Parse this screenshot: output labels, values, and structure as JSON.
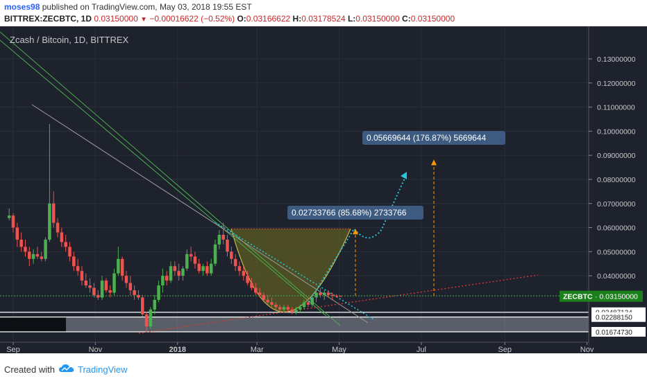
{
  "header": {
    "user": "moses98",
    "published": "published on TradingView.com, May 03, 2018 19:55 EST",
    "symbol": "BITTREX:ZECBTC, 1D",
    "price": "0.03150000",
    "change": "−0.00016622 (−0.52%)",
    "o_label": "O:",
    "o_value": "0.03166622",
    "h_label": "H:",
    "h_value": "0.03178524",
    "l_label": "L:",
    "l_value": "0.03150000",
    "c_label": "C:",
    "c_value": "0.03150000"
  },
  "footer": {
    "created": "Created with",
    "brand": "TradingView"
  },
  "colors": {
    "bg": "#1e222d",
    "grid": "#2a2e39",
    "up": "#4caf50",
    "down": "#ef5350",
    "green_line": "#4caf50",
    "cyan": "#26c6da",
    "red_dotted": "#e53935",
    "orange": "#ff9800",
    "cup_fill": "#6b6b1f",
    "label_bg": "#3d5a80"
  },
  "chart_data": {
    "type": "candlestick",
    "title": "Zcash / Bitcoin, 1D, BITTREX",
    "x_ticks": [
      "Sep",
      "Nov",
      "2018",
      "Mar",
      "May",
      "Jul",
      "Sep",
      "Nov"
    ],
    "y_ticks": [
      "0.13000000",
      "0.12000000",
      "0.11000000",
      "0.10000000",
      "0.09000000",
      "0.08000000",
      "0.07000000",
      "0.06000000",
      "0.05000000",
      "0.04000000"
    ],
    "ylim": [
      0.0135,
      0.137
    ],
    "yscale": "linear",
    "price_labels": [
      {
        "name": "ZECBTC",
        "value": "0.03150000",
        "y": 0.0315
      },
      {
        "value": "0.02487134",
        "y": 0.02487134
      },
      {
        "value": "0.02288150",
        "y": 0.0228815
      },
      {
        "value": "0.01674730",
        "y": 0.0167473
      }
    ],
    "annotations": [
      {
        "text": "0.02733766 (85.68%) 2733766"
      },
      {
        "text": "0.05669644 (176.87%) 5669644"
      }
    ],
    "candles": [
      [
        "2017-08-29",
        0.064,
        0.068,
        0.063,
        0.065
      ],
      [
        "2017-09-01",
        0.065,
        0.066,
        0.058,
        0.06
      ],
      [
        "2017-09-04",
        0.06,
        0.062,
        0.052,
        0.055
      ],
      [
        "2017-09-07",
        0.055,
        0.058,
        0.05,
        0.052
      ],
      [
        "2017-09-10",
        0.052,
        0.055,
        0.048,
        0.05
      ],
      [
        "2017-09-13",
        0.05,
        0.052,
        0.044,
        0.047
      ],
      [
        "2017-09-16",
        0.047,
        0.051,
        0.045,
        0.049
      ],
      [
        "2017-09-19",
        0.049,
        0.052,
        0.047,
        0.048
      ],
      [
        "2017-09-22",
        0.048,
        0.05,
        0.046,
        0.047
      ],
      [
        "2017-09-25",
        0.047,
        0.056,
        0.046,
        0.055
      ],
      [
        "2017-09-28",
        0.055,
        0.103,
        0.054,
        0.07
      ],
      [
        "2017-10-01",
        0.07,
        0.075,
        0.06,
        0.062
      ],
      [
        "2017-10-04",
        0.062,
        0.064,
        0.056,
        0.058
      ],
      [
        "2017-10-07",
        0.058,
        0.06,
        0.052,
        0.054
      ],
      [
        "2017-10-10",
        0.054,
        0.057,
        0.05,
        0.052
      ],
      [
        "2017-10-13",
        0.052,
        0.054,
        0.046,
        0.048
      ],
      [
        "2017-10-16",
        0.048,
        0.05,
        0.042,
        0.044
      ],
      [
        "2017-10-19",
        0.044,
        0.047,
        0.04,
        0.042
      ],
      [
        "2017-10-22",
        0.042,
        0.044,
        0.036,
        0.038
      ],
      [
        "2017-10-25",
        0.038,
        0.041,
        0.035,
        0.036
      ],
      [
        "2017-10-28",
        0.036,
        0.039,
        0.033,
        0.035
      ],
      [
        "2017-10-31",
        0.035,
        0.037,
        0.031,
        0.032
      ],
      [
        "2017-11-03",
        0.032,
        0.034,
        0.03,
        0.031
      ],
      [
        "2017-11-06",
        0.031,
        0.04,
        0.03,
        0.038
      ],
      [
        "2017-11-09",
        0.038,
        0.039,
        0.033,
        0.034
      ],
      [
        "2017-11-12",
        0.034,
        0.036,
        0.031,
        0.033
      ],
      [
        "2017-11-15",
        0.033,
        0.043,
        0.032,
        0.041
      ],
      [
        "2017-11-18",
        0.041,
        0.052,
        0.04,
        0.047
      ],
      [
        "2017-11-21",
        0.047,
        0.048,
        0.038,
        0.04
      ],
      [
        "2017-11-24",
        0.04,
        0.042,
        0.035,
        0.037
      ],
      [
        "2017-11-27",
        0.037,
        0.04,
        0.032,
        0.034
      ],
      [
        "2017-11-30",
        0.034,
        0.036,
        0.03,
        0.032
      ],
      [
        "2017-12-03",
        0.032,
        0.034,
        0.03,
        0.031
      ],
      [
        "2017-12-06",
        0.031,
        0.032,
        0.023,
        0.024
      ],
      [
        "2017-12-09",
        0.024,
        0.025,
        0.017,
        0.019
      ],
      [
        "2017-12-12",
        0.019,
        0.027,
        0.018,
        0.026
      ],
      [
        "2017-12-15",
        0.026,
        0.032,
        0.024,
        0.03
      ],
      [
        "2017-12-18",
        0.03,
        0.038,
        0.029,
        0.036
      ],
      [
        "2017-12-21",
        0.036,
        0.043,
        0.033,
        0.04
      ],
      [
        "2017-12-24",
        0.04,
        0.042,
        0.036,
        0.038
      ],
      [
        "2017-12-27",
        0.038,
        0.046,
        0.037,
        0.044
      ],
      [
        "2017-12-30",
        0.044,
        0.046,
        0.04,
        0.042
      ],
      [
        "2018-01-02",
        0.042,
        0.045,
        0.038,
        0.04
      ],
      [
        "2018-01-05",
        0.04,
        0.044,
        0.038,
        0.043
      ],
      [
        "2018-01-08",
        0.043,
        0.051,
        0.042,
        0.049
      ],
      [
        "2018-01-11",
        0.049,
        0.052,
        0.046,
        0.048
      ],
      [
        "2018-01-14",
        0.048,
        0.05,
        0.043,
        0.045
      ],
      [
        "2018-01-17",
        0.045,
        0.047,
        0.041,
        0.042
      ],
      [
        "2018-01-20",
        0.042,
        0.045,
        0.04,
        0.044
      ],
      [
        "2018-01-23",
        0.044,
        0.046,
        0.04,
        0.041
      ],
      [
        "2018-01-26",
        0.041,
        0.047,
        0.04,
        0.045
      ],
      [
        "2018-01-29",
        0.045,
        0.055,
        0.044,
        0.053
      ],
      [
        "2018-02-01",
        0.053,
        0.059,
        0.051,
        0.057
      ],
      [
        "2018-02-04",
        0.057,
        0.062,
        0.053,
        0.055
      ],
      [
        "2018-02-07",
        0.055,
        0.057,
        0.048,
        0.05
      ],
      [
        "2018-02-10",
        0.05,
        0.052,
        0.045,
        0.047
      ],
      [
        "2018-02-13",
        0.047,
        0.049,
        0.042,
        0.044
      ],
      [
        "2018-02-16",
        0.044,
        0.046,
        0.04,
        0.042
      ],
      [
        "2018-02-19",
        0.042,
        0.044,
        0.038,
        0.04
      ],
      [
        "2018-02-22",
        0.04,
        0.042,
        0.036,
        0.037
      ],
      [
        "2018-02-25",
        0.037,
        0.039,
        0.034,
        0.035
      ],
      [
        "2018-02-28",
        0.035,
        0.037,
        0.032,
        0.033
      ],
      [
        "2018-03-03",
        0.033,
        0.035,
        0.031,
        0.032
      ],
      [
        "2018-03-06",
        0.032,
        0.033,
        0.029,
        0.03
      ],
      [
        "2018-03-09",
        0.03,
        0.032,
        0.028,
        0.029
      ],
      [
        "2018-03-12",
        0.029,
        0.031,
        0.027,
        0.028
      ],
      [
        "2018-03-15",
        0.028,
        0.029,
        0.026,
        0.027
      ],
      [
        "2018-03-18",
        0.027,
        0.028,
        0.025,
        0.026
      ],
      [
        "2018-03-21",
        0.026,
        0.028,
        0.025,
        0.027
      ],
      [
        "2018-03-24",
        0.027,
        0.028,
        0.025,
        0.026
      ],
      [
        "2018-03-27",
        0.026,
        0.027,
        0.024,
        0.025
      ],
      [
        "2018-03-30",
        0.025,
        0.027,
        0.024,
        0.026
      ],
      [
        "2018-04-02",
        0.026,
        0.028,
        0.025,
        0.027
      ],
      [
        "2018-04-05",
        0.027,
        0.03,
        0.026,
        0.029
      ],
      [
        "2018-04-08",
        0.029,
        0.031,
        0.027,
        0.028
      ],
      [
        "2018-04-11",
        0.028,
        0.032,
        0.027,
        0.031
      ],
      [
        "2018-04-14",
        0.031,
        0.034,
        0.029,
        0.033
      ],
      [
        "2018-04-17",
        0.033,
        0.035,
        0.031,
        0.032
      ],
      [
        "2018-04-20",
        0.032,
        0.034,
        0.03,
        0.033
      ],
      [
        "2018-04-23",
        0.033,
        0.034,
        0.031,
        0.032
      ],
      [
        "2018-04-26",
        0.032,
        0.033,
        0.03,
        0.0317
      ],
      [
        "2018-04-29",
        0.0317,
        0.0323,
        0.031,
        0.0316
      ],
      [
        "2018-05-02",
        0.0316,
        0.0318,
        0.0315,
        0.0315
      ]
    ]
  }
}
